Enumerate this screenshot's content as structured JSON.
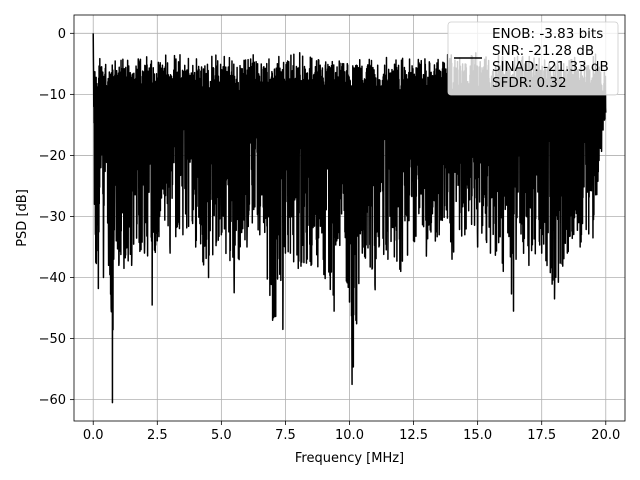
{
  "chart_data": {
    "type": "line",
    "title": "",
    "xlabel": "Frequency [MHz]",
    "ylabel": "PSD [dB]",
    "xlim": [
      -0.75,
      20.75
    ],
    "ylim": [
      -63.5,
      3.0
    ],
    "xticks": [
      0.0,
      2.5,
      5.0,
      7.5,
      10.0,
      12.5,
      15.0,
      17.5,
      20.0
    ],
    "xtick_labels": [
      "0.0",
      "2.5",
      "5.0",
      "7.5",
      "10.0",
      "12.5",
      "15.0",
      "17.5",
      "20.0"
    ],
    "yticks": [
      0,
      -10,
      -20,
      -30,
      -40,
      -50,
      -60
    ],
    "ytick_labels": [
      "0",
      "−10",
      "−20",
      "−30",
      "−40",
      "−50",
      "−60"
    ],
    "grid": true,
    "legend_position": "top-right",
    "legend": [
      "ENOB: -3.83 bits",
      "SNR: -21.28 dB",
      "SINAD: -21.33 dB",
      "SFDR: 0.32"
    ],
    "series_color": "#000000",
    "series": [
      {
        "x": [
          0.0,
          0.05,
          0.1,
          0.2,
          0.3,
          0.4,
          0.5,
          0.6,
          0.7,
          0.75,
          0.8,
          0.9,
          1.0,
          1.2,
          1.5,
          2.0,
          2.3,
          2.5,
          3.0,
          3.5,
          4.0,
          4.5,
          5.0,
          5.5,
          6.0,
          6.5,
          7.0,
          7.4,
          7.5,
          8.0,
          8.5,
          9.0,
          9.4,
          9.5,
          10.0,
          10.1,
          10.5,
          11.0,
          11.5,
          12.0,
          12.5,
          13.0,
          13.5,
          14.0,
          14.5,
          15.0,
          15.5,
          16.0,
          16.4,
          16.5,
          17.0,
          17.5,
          18.0,
          18.5,
          19.0,
          19.5,
          20.0
        ],
        "y": [
          0.0,
          -28.0,
          -37.5,
          -41.8,
          -22.0,
          -40.0,
          -20.0,
          -38.0,
          -45.0,
          -60.5,
          -37.0,
          -34.0,
          -38.0,
          -38.5,
          -38.0,
          -36.0,
          -44.5,
          -34.0,
          -36.0,
          -33.0,
          -35.0,
          -40.0,
          -33.0,
          -42.5,
          -35.0,
          -33.0,
          -47.0,
          -48.5,
          -36.0,
          -38.5,
          -38.0,
          -39.5,
          -45.5,
          -34.0,
          -44.0,
          -57.5,
          -36.0,
          -42.0,
          -37.0,
          -39.0,
          -34.0,
          -36.5,
          -33.0,
          -37.0,
          -33.0,
          -35.0,
          -36.0,
          -39.0,
          -45.5,
          -37.0,
          -38.0,
          -36.0,
          -43.5,
          -36.0,
          -35.0,
          -33.5,
          -13.0
        ]
      }
    ]
  }
}
